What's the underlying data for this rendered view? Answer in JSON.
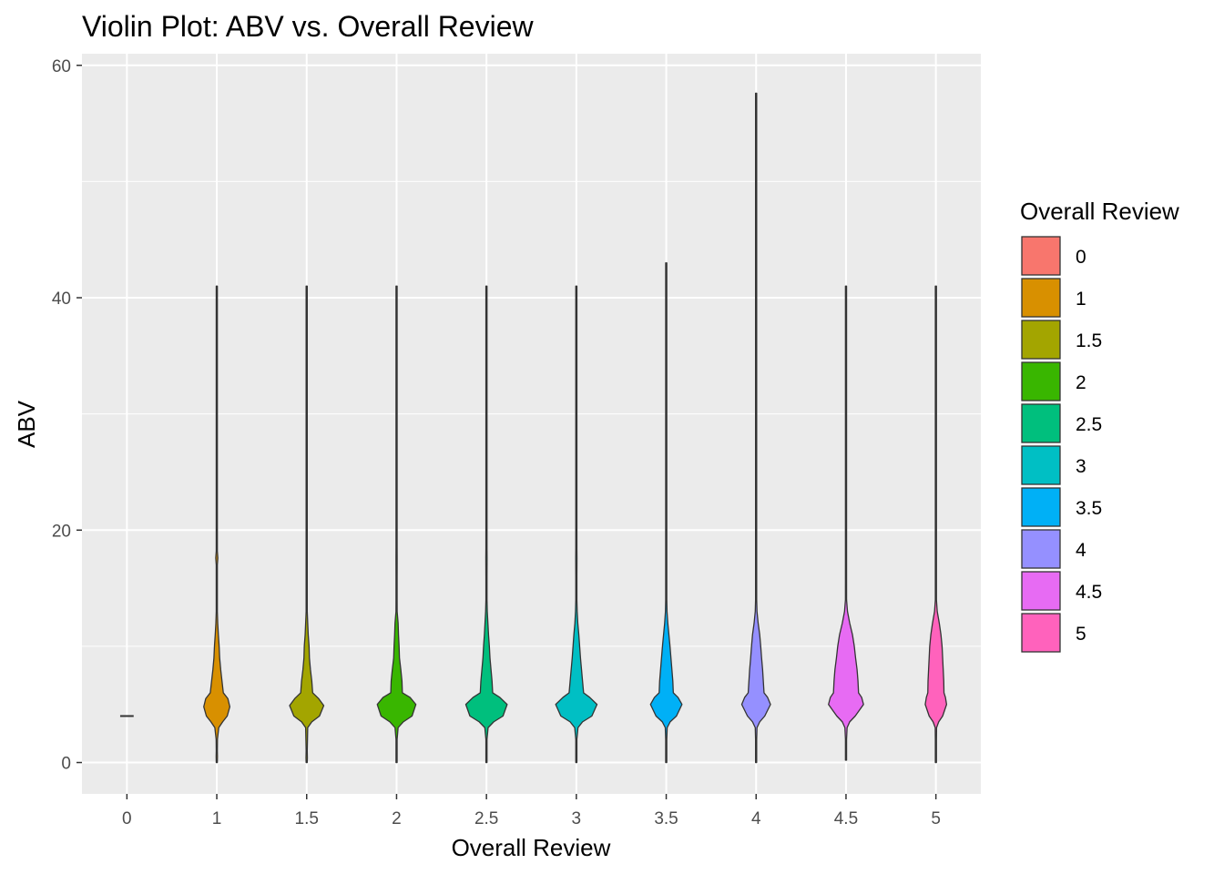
{
  "chart_data": {
    "type": "violin",
    "title": "Violin Plot: ABV vs. Overall Review",
    "xlabel": "Overall Review",
    "ylabel": "ABV",
    "ylim": [
      -2.7,
      61
    ],
    "y_ticks": [
      0,
      20,
      40,
      60
    ],
    "categories": [
      "0",
      "1",
      "1.5",
      "2",
      "2.5",
      "3",
      "3.5",
      "4",
      "4.5",
      "5"
    ],
    "grid": true,
    "legend": {
      "title": "Overall Review",
      "position": "right",
      "entries": [
        "0",
        "1",
        "1.5",
        "2",
        "2.5",
        "3",
        "3.5",
        "4",
        "4.5",
        "5"
      ]
    },
    "series": [
      {
        "category": "0",
        "color": "#F8766D",
        "min": 4.0,
        "max": 4.0,
        "mode": 4.0,
        "width": 0.15,
        "profile": [
          [
            4.0,
            1.0
          ]
        ]
      },
      {
        "category": "1",
        "color": "#D89000",
        "min": 0.0,
        "max": 41.0,
        "mode": 4.8,
        "width": 0.29,
        "profile": [
          [
            0,
            0.01
          ],
          [
            0.5,
            0.05
          ],
          [
            1,
            0.03
          ],
          [
            2,
            0.05
          ],
          [
            3,
            0.15
          ],
          [
            3.5,
            0.45
          ],
          [
            4,
            0.8
          ],
          [
            4.8,
            1.0
          ],
          [
            5.5,
            0.85
          ],
          [
            6,
            0.5
          ],
          [
            7,
            0.4
          ],
          [
            8,
            0.3
          ],
          [
            9,
            0.22
          ],
          [
            10,
            0.18
          ],
          [
            11,
            0.12
          ],
          [
            12,
            0.07
          ],
          [
            13,
            0.04
          ],
          [
            14,
            0.03
          ],
          [
            16,
            0.02
          ],
          [
            17,
            0.04
          ],
          [
            17.6,
            0.08
          ],
          [
            18.2,
            0.04
          ],
          [
            19,
            0.015
          ],
          [
            20,
            0.02
          ],
          [
            24,
            0.01
          ],
          [
            30,
            0.01
          ],
          [
            32,
            0.02
          ],
          [
            33,
            0.01
          ],
          [
            41,
            0.01
          ]
        ]
      },
      {
        "category": "1.5",
        "color": "#A3A500",
        "min": 0.0,
        "max": 41.0,
        "mode": 4.9,
        "width": 0.38,
        "profile": [
          [
            0,
            0.01
          ],
          [
            0.4,
            0.04
          ],
          [
            1,
            0.02
          ],
          [
            3,
            0.06
          ],
          [
            3.5,
            0.3
          ],
          [
            4,
            0.75
          ],
          [
            4.9,
            1.0
          ],
          [
            5.5,
            0.7
          ],
          [
            6,
            0.35
          ],
          [
            7,
            0.3
          ],
          [
            8,
            0.22
          ],
          [
            9,
            0.16
          ],
          [
            10,
            0.14
          ],
          [
            11,
            0.09
          ],
          [
            12,
            0.06
          ],
          [
            13,
            0.03
          ],
          [
            15,
            0.02
          ],
          [
            16,
            0.015
          ],
          [
            17.5,
            0.03
          ],
          [
            18.3,
            0.02
          ],
          [
            19,
            0.01
          ],
          [
            41,
            0.01
          ]
        ]
      },
      {
        "category": "2",
        "color": "#39B600",
        "min": 0.0,
        "max": 41.0,
        "mode": 5.0,
        "width": 0.43,
        "profile": [
          [
            0,
            0.01
          ],
          [
            2,
            0.02
          ],
          [
            3,
            0.08
          ],
          [
            3.5,
            0.35
          ],
          [
            4,
            0.8
          ],
          [
            5,
            1.0
          ],
          [
            5.6,
            0.7
          ],
          [
            6,
            0.3
          ],
          [
            7,
            0.28
          ],
          [
            8,
            0.22
          ],
          [
            9,
            0.15
          ],
          [
            10,
            0.13
          ],
          [
            11,
            0.1
          ],
          [
            12,
            0.08
          ],
          [
            13,
            0.03
          ],
          [
            14,
            0.02
          ],
          [
            16,
            0.015
          ],
          [
            17.5,
            0.03
          ],
          [
            18.5,
            0.02
          ],
          [
            20,
            0.01
          ],
          [
            41,
            0.01
          ]
        ]
      },
      {
        "category": "2.5",
        "color": "#00BF7D",
        "min": 0.0,
        "max": 41.0,
        "mode": 5.0,
        "width": 0.46,
        "profile": [
          [
            0,
            0.01
          ],
          [
            2,
            0.02
          ],
          [
            3,
            0.08
          ],
          [
            3.5,
            0.35
          ],
          [
            4,
            0.8
          ],
          [
            5,
            1.0
          ],
          [
            5.6,
            0.65
          ],
          [
            6,
            0.3
          ],
          [
            7,
            0.27
          ],
          [
            8,
            0.22
          ],
          [
            9,
            0.17
          ],
          [
            10,
            0.14
          ],
          [
            11,
            0.1
          ],
          [
            12,
            0.07
          ],
          [
            13,
            0.04
          ],
          [
            14,
            0.02
          ],
          [
            16,
            0.015
          ],
          [
            17.6,
            0.03
          ],
          [
            18.4,
            0.02
          ],
          [
            20,
            0.01
          ],
          [
            41,
            0.01
          ]
        ]
      },
      {
        "category": "3",
        "color": "#00BFC4",
        "min": 0.0,
        "max": 41.0,
        "mode": 5.0,
        "width": 0.46,
        "profile": [
          [
            0,
            0.01
          ],
          [
            2,
            0.02
          ],
          [
            3,
            0.08
          ],
          [
            3.5,
            0.3
          ],
          [
            4,
            0.75
          ],
          [
            5,
            1.0
          ],
          [
            5.6,
            0.65
          ],
          [
            6,
            0.35
          ],
          [
            7,
            0.3
          ],
          [
            8,
            0.25
          ],
          [
            9,
            0.2
          ],
          [
            10,
            0.16
          ],
          [
            11,
            0.12
          ],
          [
            12,
            0.07
          ],
          [
            13,
            0.04
          ],
          [
            14,
            0.02
          ],
          [
            16,
            0.015
          ],
          [
            17.6,
            0.03
          ],
          [
            18.4,
            0.02
          ],
          [
            20,
            0.01
          ],
          [
            41,
            0.01
          ]
        ]
      },
      {
        "category": "3.5",
        "color": "#00B0F6",
        "min": 0.0,
        "max": 43.0,
        "mode": 5.0,
        "width": 0.35,
        "profile": [
          [
            0,
            0.01
          ],
          [
            2,
            0.02
          ],
          [
            3,
            0.06
          ],
          [
            3.5,
            0.25
          ],
          [
            4,
            0.65
          ],
          [
            5,
            1.0
          ],
          [
            5.6,
            0.75
          ],
          [
            6,
            0.45
          ],
          [
            7,
            0.42
          ],
          [
            8,
            0.36
          ],
          [
            9,
            0.3
          ],
          [
            10,
            0.24
          ],
          [
            11,
            0.17
          ],
          [
            12,
            0.1
          ],
          [
            13,
            0.05
          ],
          [
            14,
            0.03
          ],
          [
            15,
            0.02
          ],
          [
            17.6,
            0.03
          ],
          [
            18.4,
            0.02
          ],
          [
            20,
            0.01
          ],
          [
            43,
            0.01
          ]
        ]
      },
      {
        "category": "4",
        "color": "#9590FF",
        "min": 0.0,
        "max": 57.6,
        "mode": 5.0,
        "width": 0.32,
        "profile": [
          [
            0,
            0.01
          ],
          [
            2,
            0.02
          ],
          [
            3,
            0.06
          ],
          [
            3.5,
            0.25
          ],
          [
            4,
            0.6
          ],
          [
            5,
            1.0
          ],
          [
            5.6,
            0.8
          ],
          [
            6,
            0.55
          ],
          [
            7,
            0.5
          ],
          [
            8,
            0.45
          ],
          [
            9,
            0.38
          ],
          [
            10,
            0.32
          ],
          [
            11,
            0.25
          ],
          [
            12,
            0.14
          ],
          [
            13,
            0.06
          ],
          [
            14,
            0.03
          ],
          [
            15,
            0.02
          ],
          [
            17.6,
            0.03
          ],
          [
            18.4,
            0.02
          ],
          [
            20,
            0.01
          ],
          [
            57.6,
            0.01
          ]
        ]
      },
      {
        "category": "4.5",
        "color": "#E76BF3",
        "min": 0.2,
        "max": 41.0,
        "mode": 5.0,
        "width": 0.41,
        "profile": [
          [
            0.2,
            0.01
          ],
          [
            2,
            0.02
          ],
          [
            3,
            0.06
          ],
          [
            3.5,
            0.2
          ],
          [
            4,
            0.5
          ],
          [
            5,
            0.95
          ],
          [
            5.6,
            0.85
          ],
          [
            6,
            0.68
          ],
          [
            7,
            0.65
          ],
          [
            8,
            0.6
          ],
          [
            9,
            0.52
          ],
          [
            10,
            0.45
          ],
          [
            11,
            0.35
          ],
          [
            12,
            0.2
          ],
          [
            13,
            0.08
          ],
          [
            14,
            0.03
          ],
          [
            16,
            0.02
          ],
          [
            18,
            0.025
          ],
          [
            19,
            0.015
          ],
          [
            26,
            0.01
          ],
          [
            27,
            0.025
          ],
          [
            28,
            0.01
          ],
          [
            41,
            0.01
          ]
        ]
      },
      {
        "category": "5",
        "color": "#FF62BC",
        "min": 0.0,
        "max": 41.0,
        "mode": 5.0,
        "width": 0.25,
        "profile": [
          [
            0,
            0.01
          ],
          [
            2,
            0.02
          ],
          [
            3,
            0.06
          ],
          [
            3.5,
            0.25
          ],
          [
            4,
            0.6
          ],
          [
            5,
            0.95
          ],
          [
            5.6,
            0.85
          ],
          [
            6,
            0.72
          ],
          [
            7,
            0.7
          ],
          [
            8,
            0.65
          ],
          [
            9,
            0.6
          ],
          [
            10,
            0.55
          ],
          [
            11,
            0.45
          ],
          [
            12,
            0.3
          ],
          [
            13,
            0.12
          ],
          [
            14,
            0.04
          ],
          [
            15,
            0.02
          ],
          [
            17.5,
            0.015
          ],
          [
            18.5,
            0.03
          ],
          [
            19.5,
            0.01
          ],
          [
            41,
            0.01
          ]
        ]
      }
    ]
  }
}
